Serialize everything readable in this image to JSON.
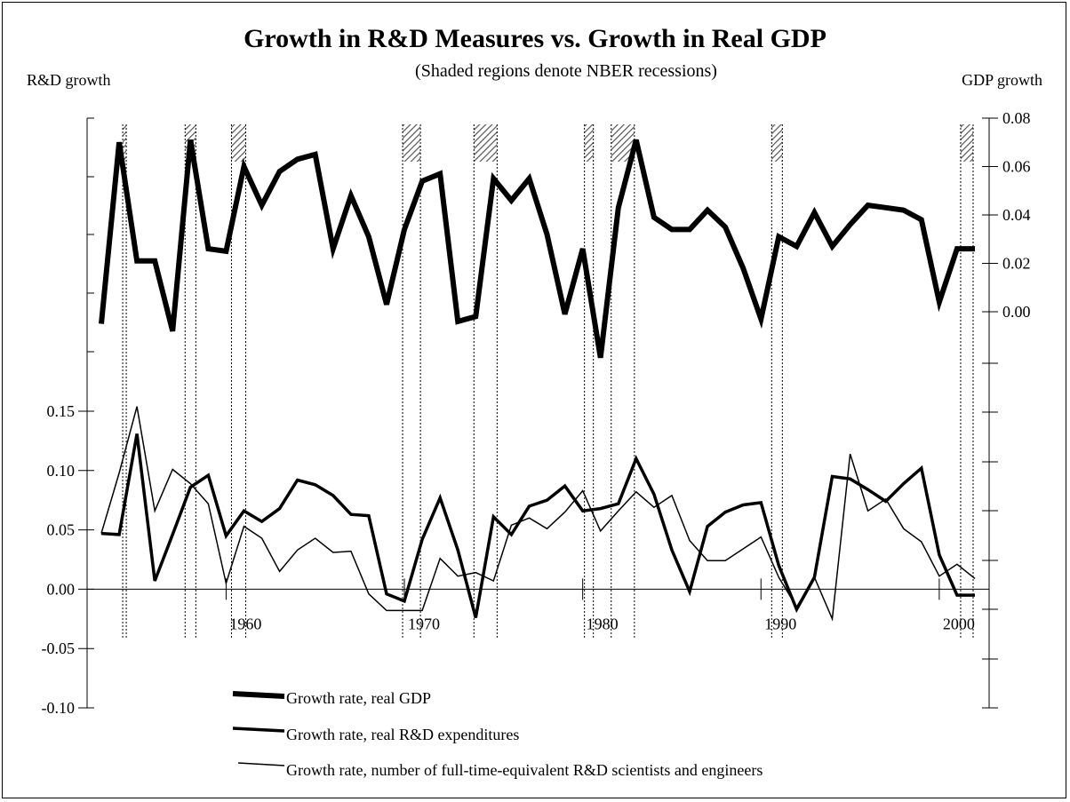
{
  "chart_data": {
    "type": "line",
    "title": "Growth in R&D Measures vs. Growth in Real GDP",
    "subtitle": "(Shaded regions denote NBER recessions)",
    "left_axis_label": "R&D growth",
    "right_axis_label": "GDP growth",
    "left_ylim": [
      -0.1,
      0.15
    ],
    "left_ticks": [
      "0.15",
      "0.10",
      "0.05",
      "0.00",
      "-0.05",
      "-0.10"
    ],
    "right_ylim": [
      0.0,
      0.08
    ],
    "right_ticks": [
      "0.08",
      "0.06",
      "0.04",
      "0.02",
      "0.00"
    ],
    "x_ticks": [
      "1960",
      "1970",
      "1980",
      "1990",
      "2000"
    ],
    "recession_dates": [
      1954.2,
      1957.7,
      1960.3,
      1969.9,
      1973.9,
      1980.1,
      1981.6,
      1990.6,
      2001.2
    ],
    "expansion_dates": [
      1954.4,
      1958.3,
      1961.1,
      1970.9,
      1975.2,
      1980.6,
      1982.9,
      1991.2,
      2001.9
    ],
    "series": [
      {
        "name": "Growth rate, real GDP",
        "axis": "right",
        "x": [
          1953,
          1954,
          1955,
          1956,
          1957,
          1958,
          1959,
          1960,
          1961,
          1962,
          1963,
          1964,
          1965,
          1966,
          1967,
          1968,
          1969,
          1970,
          1971,
          1972,
          1973,
          1974,
          1975,
          1976,
          1977,
          1978,
          1979,
          1980,
          1981,
          1982,
          1983,
          1984,
          1985,
          1986,
          1987,
          1988,
          1989,
          1990,
          1991,
          1992,
          1993,
          1994,
          1995,
          1996,
          1997,
          1998,
          1999,
          2000,
          2001,
          2002
        ],
        "values": [
          -0.005,
          0.07,
          0.021,
          0.021,
          -0.008,
          0.071,
          0.026,
          0.025,
          0.06,
          0.044,
          0.058,
          0.063,
          0.065,
          0.026,
          0.048,
          0.031,
          0.003,
          0.034,
          0.054,
          0.057,
          -0.004,
          -0.002,
          0.055,
          0.046,
          0.055,
          0.032,
          -0.001,
          0.026,
          -0.019,
          0.043,
          0.071,
          0.039,
          0.034,
          0.034,
          0.042,
          0.035,
          0.018,
          -0.003,
          0.031,
          0.027,
          0.041,
          0.027,
          0.036,
          0.044,
          0.043,
          0.042,
          0.038,
          0.004,
          0.026,
          0.026
        ]
      },
      {
        "name": "Growth rate, real R&D expenditures",
        "axis": "left",
        "x": [
          1953,
          1954,
          1955,
          1956,
          1957,
          1958,
          1959,
          1960,
          1961,
          1962,
          1963,
          1964,
          1965,
          1966,
          1967,
          1968,
          1969,
          1970,
          1971,
          1972,
          1973,
          1974,
          1975,
          1976,
          1977,
          1978,
          1979,
          1980,
          1981,
          1982,
          1983,
          1984,
          1985,
          1986,
          1987,
          1988,
          1989,
          1990,
          1991,
          1992,
          1993,
          1994,
          1995,
          1996,
          1997,
          1998,
          1999,
          2000,
          2001,
          2002
        ],
        "values": [
          0.047,
          0.046,
          0.131,
          0.007,
          0.046,
          0.086,
          0.096,
          0.045,
          0.066,
          0.057,
          0.068,
          0.092,
          0.088,
          0.079,
          0.063,
          0.062,
          -0.004,
          -0.01,
          0.042,
          0.077,
          0.033,
          -0.024,
          0.061,
          0.046,
          0.07,
          0.075,
          0.087,
          0.066,
          0.068,
          0.072,
          0.11,
          0.08,
          0.033,
          -0.002,
          0.053,
          0.065,
          0.071,
          0.073,
          0.02,
          -0.017,
          0.01,
          0.095,
          0.093,
          0.084,
          0.074,
          0.089,
          0.102,
          0.029,
          -0.005,
          -0.005
        ]
      },
      {
        "name": "Growth rate, number of full-time-equivalent R&D scientists and engineers",
        "axis": "left",
        "x": [
          1953,
          1954,
          1955,
          1956,
          1957,
          1958,
          1959,
          1960,
          1961,
          1962,
          1963,
          1964,
          1965,
          1966,
          1967,
          1968,
          1969,
          1971,
          1972,
          1973,
          1974,
          1975,
          1976,
          1977,
          1978,
          1979,
          1980,
          1981,
          1982,
          1983,
          1984,
          1985,
          1986,
          1987,
          1988,
          1989,
          1990,
          1991,
          1992,
          1993,
          1994,
          1995,
          1996,
          1997,
          1998,
          1999,
          2000,
          2001,
          2002
        ],
        "values": [
          0.047,
          0.098,
          0.154,
          0.066,
          0.101,
          0.089,
          0.072,
          0.005,
          0.053,
          0.043,
          0.015,
          0.033,
          0.043,
          0.031,
          0.032,
          -0.004,
          -0.018,
          -0.018,
          0.026,
          0.011,
          0.014,
          0.007,
          0.054,
          0.06,
          0.051,
          0.065,
          0.083,
          0.049,
          0.066,
          0.082,
          0.069,
          0.079,
          0.041,
          0.024,
          0.024,
          0.034,
          0.044,
          0.01,
          -0.015,
          0.01,
          -0.025,
          0.114,
          0.066,
          0.076,
          0.051,
          0.04,
          0.011,
          0.021,
          0.009
        ]
      }
    ],
    "grid": false,
    "legend_position": "bottom-left"
  }
}
